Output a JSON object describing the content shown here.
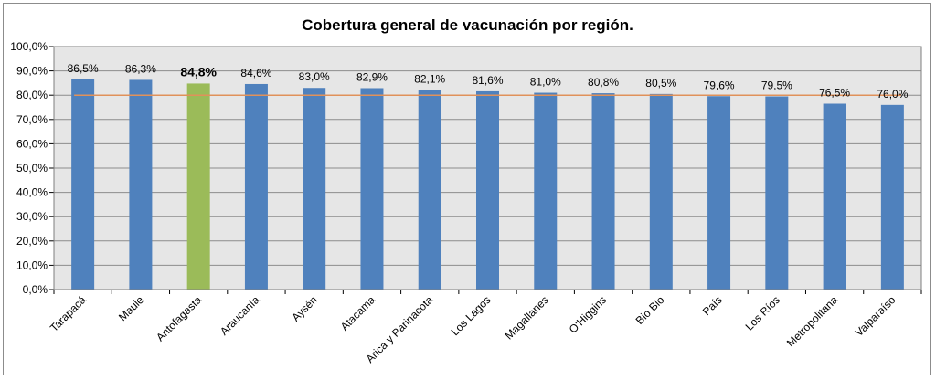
{
  "chart_data": {
    "type": "bar",
    "title": "Cobertura general de vacunación por región.",
    "xlabel": "",
    "ylabel": "",
    "ylim": [
      0,
      100
    ],
    "yticks": [
      "0,0%",
      "10,0%",
      "20,0%",
      "30,0%",
      "40,0%",
      "50,0%",
      "60,0%",
      "70,0%",
      "80,0%",
      "90,0%",
      "100,0%"
    ],
    "ytick_values": [
      0,
      10,
      20,
      30,
      40,
      50,
      60,
      70,
      80,
      90,
      100
    ],
    "grid": true,
    "legend": "none",
    "categories": [
      "Tarapacá",
      "Maule",
      "Antofagasta",
      "Araucanía",
      "Aysén",
      "Atacama",
      "Arica y Parinacota",
      "Los Lagos",
      "Magallanes",
      "O'Higgins",
      "Bio Bio",
      "País",
      "Los Ríos",
      "Metropolitana",
      "Valparaíso"
    ],
    "values": [
      86.5,
      86.3,
      84.8,
      84.6,
      83.0,
      82.9,
      82.1,
      81.6,
      81.0,
      80.8,
      80.5,
      79.6,
      79.5,
      76.5,
      76.0
    ],
    "value_labels": [
      "86,5%",
      "86,3%",
      "84,8%",
      "84,6%",
      "83,0%",
      "82,9%",
      "82,1%",
      "81,6%",
      "81,0%",
      "80,8%",
      "80,5%",
      "79,6%",
      "79,5%",
      "76,5%",
      "76,0%"
    ],
    "highlight_category": "Antofagasta",
    "reference_line": 80,
    "colors": {
      "bar": "#4f81bd",
      "highlight": "#9bbb59",
      "reference_line": "#e0915a",
      "plot_background": "#e6e6e6",
      "gridline": "#8c8c8c"
    }
  }
}
